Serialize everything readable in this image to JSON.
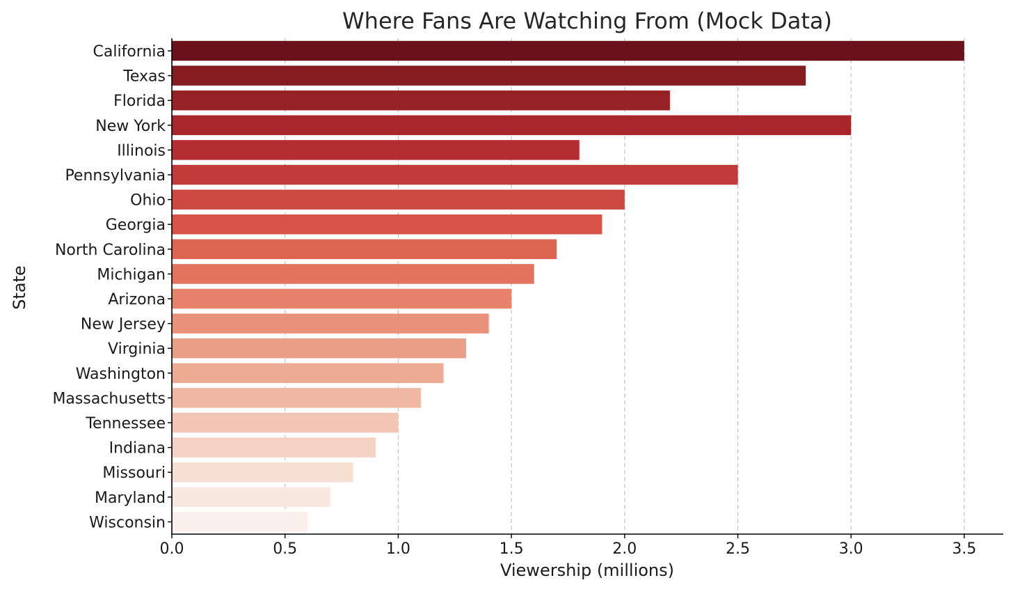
{
  "chart_data": {
    "type": "bar",
    "orientation": "horizontal",
    "title": "Where Fans Are Watching From (Mock Data)",
    "xlabel": "Viewership (millions)",
    "ylabel": "State",
    "xlim": [
      0,
      3.65
    ],
    "xticks": [
      0.0,
      0.5,
      1.0,
      1.5,
      2.0,
      2.5,
      3.0,
      3.5
    ],
    "xtick_labels": [
      "0.0",
      "0.5",
      "1.0",
      "1.5",
      "2.0",
      "2.5",
      "3.0",
      "3.5"
    ],
    "grid": "x-dashed",
    "categories": [
      "California",
      "Texas",
      "Florida",
      "New York",
      "Illinois",
      "Pennsylvania",
      "Ohio",
      "Georgia",
      "North Carolina",
      "Michigan",
      "Arizona",
      "New Jersey",
      "Virginia",
      "Washington",
      "Massachusetts",
      "Tennessee",
      "Indiana",
      "Missouri",
      "Maryland",
      "Wisconsin"
    ],
    "values": [
      3.5,
      2.8,
      2.2,
      3.0,
      1.8,
      2.5,
      2.0,
      1.9,
      1.7,
      1.6,
      1.5,
      1.4,
      1.3,
      1.2,
      1.1,
      1.0,
      0.9,
      0.8,
      0.7,
      0.6
    ],
    "colors": [
      "#6b111c",
      "#841c22",
      "#962226",
      "#a7262c",
      "#b32d31",
      "#c13a3a",
      "#cc4841",
      "#d55447",
      "#de6551",
      "#e3735f",
      "#e7836d",
      "#e9917b",
      "#eb9e88",
      "#edab95",
      "#f0b8a4",
      "#f3c5b4",
      "#f5d2c4",
      "#f7ded3",
      "#f9e8e0",
      "#fbefeb"
    ]
  }
}
